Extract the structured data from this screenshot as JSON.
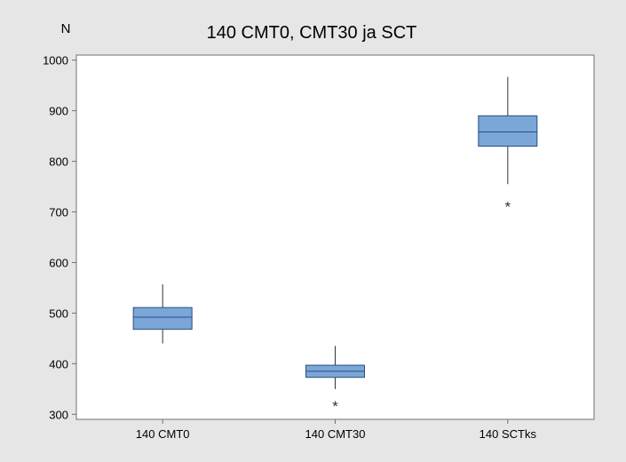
{
  "chart_data": {
    "type": "boxplot",
    "title": "140 CMT0, CMT30 ja SCT",
    "ylabel": "N",
    "xlabel": "",
    "ylim": [
      290,
      1010
    ],
    "yticks": [
      300,
      400,
      500,
      600,
      700,
      800,
      900,
      1000
    ],
    "grid": false,
    "legend": "none",
    "categories": [
      "140 CMT0",
      "140 CMT30",
      "140 SCTks"
    ],
    "boxes": [
      {
        "category": "140 CMT0",
        "whisker_low": 440,
        "q1": 468,
        "median": 492,
        "q3": 511,
        "whisker_high": 557,
        "outliers": []
      },
      {
        "category": "140 CMT30",
        "whisker_low": 350,
        "q1": 373,
        "median": 385,
        "q3": 397,
        "whisker_high": 435,
        "outliers": [
          318
        ]
      },
      {
        "category": "140 SCTks",
        "whisker_low": 755,
        "q1": 830,
        "median": 858,
        "q3": 890,
        "whisker_high": 967,
        "outliers": [
          712
        ]
      }
    ],
    "outlier_marker": "*"
  },
  "colors": {
    "background": "#e6e6e6",
    "plot_area": "#ffffff",
    "box_fill": "#7aa6d8",
    "box_stroke": "#2b4f7f",
    "axis": "#707070",
    "whisker": "#333333"
  }
}
